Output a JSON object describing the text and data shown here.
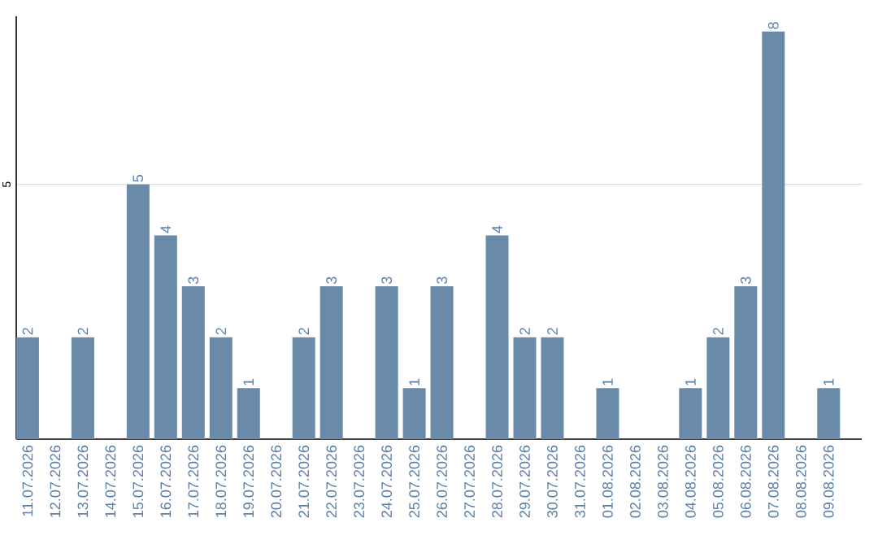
{
  "chart_data": {
    "type": "bar",
    "categories": [
      "11.07.2026",
      "12.07.2026",
      "13.07.2026",
      "14.07.2026",
      "15.07.2026",
      "16.07.2026",
      "17.07.2026",
      "18.07.2026",
      "19.07.2026",
      "20.07.2026",
      "21.07.2026",
      "22.07.2026",
      "23.07.2026",
      "24.07.2026",
      "25.07.2026",
      "26.07.2026",
      "27.07.2026",
      "28.07.2026",
      "29.07.2026",
      "30.07.2026",
      "31.07.2026",
      "01.08.2026",
      "02.08.2026",
      "03.08.2026",
      "04.08.2026",
      "05.08.2026",
      "06.08.2026",
      "07.08.2026",
      "08.08.2026",
      "09.08.2026"
    ],
    "values": [
      2,
      0,
      2,
      0,
      5,
      4,
      3,
      2,
      1,
      0,
      2,
      3,
      0,
      3,
      1,
      3,
      0,
      4,
      2,
      2,
      0,
      1,
      0,
      0,
      1,
      2,
      3,
      8,
      0,
      1
    ],
    "value_labels": [
      "2",
      null,
      "2",
      null,
      "5",
      "4",
      "3",
      "2",
      "1",
      null,
      "2",
      "3",
      null,
      "3",
      "1",
      "3",
      null,
      "4",
      "2",
      "2",
      null,
      "1",
      null,
      null,
      "1",
      "2",
      "3",
      "8",
      null,
      "1"
    ],
    "color": "#6a8aaa",
    "ylim": [
      0,
      8.3
    ],
    "yticks": [
      5
    ],
    "grid": "y"
  }
}
